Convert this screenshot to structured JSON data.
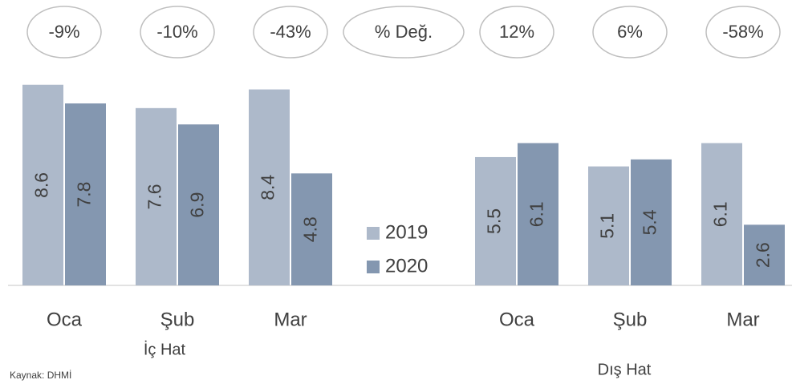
{
  "chart_data": {
    "type": "bar",
    "categories": [
      "Oca",
      "Şub",
      "Mar",
      "Oca",
      "Şub",
      "Mar"
    ],
    "groups": [
      "İç Hat",
      "Dış Hat"
    ],
    "series": [
      {
        "name": "2019",
        "color": "#adb9ca",
        "values": [
          8.6,
          7.6,
          8.4,
          5.5,
          5.1,
          6.1
        ]
      },
      {
        "name": "2020",
        "color": "#8497b0",
        "values": [
          7.8,
          6.9,
          4.8,
          6.1,
          5.4,
          2.6
        ]
      }
    ],
    "change_label": "% Değ.",
    "changes": [
      -9,
      -10,
      -43,
      12,
      6,
      -58
    ],
    "change_labels": [
      "-9%",
      "-10%",
      "-43%",
      "12%",
      "6%",
      "-58%"
    ],
    "source": "Kaynak: DHMİ"
  }
}
